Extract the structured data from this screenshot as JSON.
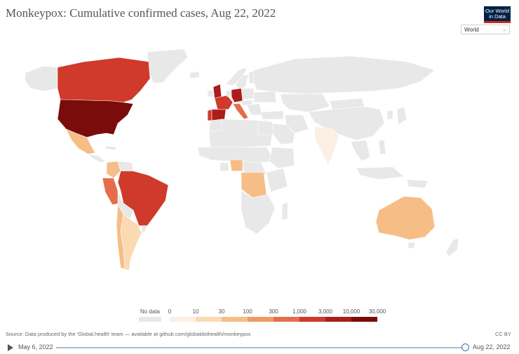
{
  "header": {
    "title": "Monkeypox: Cumulative confirmed cases, Aug 22, 2022",
    "logo_line1": "Our World",
    "logo_line2": "in Data"
  },
  "controls": {
    "region_selected": "World"
  },
  "legend": {
    "no_data_label": "No data",
    "ticks": [
      "0",
      "10",
      "30",
      "100",
      "300",
      "1,000",
      "3,000",
      "10,000",
      "30,000"
    ],
    "colors": [
      "#fcefe3",
      "#fbd9b3",
      "#f7bd87",
      "#ef9b62",
      "#e66d4b",
      "#cf3a2b",
      "#ab1d1b",
      "#7a0c0c"
    ],
    "no_data_color": "#e8e8e8"
  },
  "footer": {
    "source": "Source: Data produced by the 'Global.health' team — available at github.com/globaldothealth/monkeypox",
    "license": "CC BY"
  },
  "timeline": {
    "start": "May 6, 2022",
    "end": "Aug 22, 2022"
  },
  "map": {
    "regions": [
      {
        "name": "Canada",
        "bin": 5
      },
      {
        "name": "United States",
        "bin": 7
      },
      {
        "name": "Mexico",
        "bin": 2
      },
      {
        "name": "Colombia",
        "bin": 2
      },
      {
        "name": "Peru",
        "bin": 4
      },
      {
        "name": "Brazil",
        "bin": 5
      },
      {
        "name": "Argentina",
        "bin": 1
      },
      {
        "name": "Chile",
        "bin": 2
      },
      {
        "name": "Spain",
        "bin": 6
      },
      {
        "name": "Portugal",
        "bin": 5
      },
      {
        "name": "France",
        "bin": 5
      },
      {
        "name": "Germany",
        "bin": 6
      },
      {
        "name": "United Kingdom",
        "bin": 6
      },
      {
        "name": "Italy",
        "bin": 4
      },
      {
        "name": "Nigeria",
        "bin": 2
      },
      {
        "name": "DR Congo",
        "bin": 2
      },
      {
        "name": "Australia",
        "bin": 2
      },
      {
        "name": "India",
        "bin": 0
      },
      {
        "name": "Russia",
        "bin": -1
      },
      {
        "name": "China",
        "bin": -1
      }
    ]
  }
}
